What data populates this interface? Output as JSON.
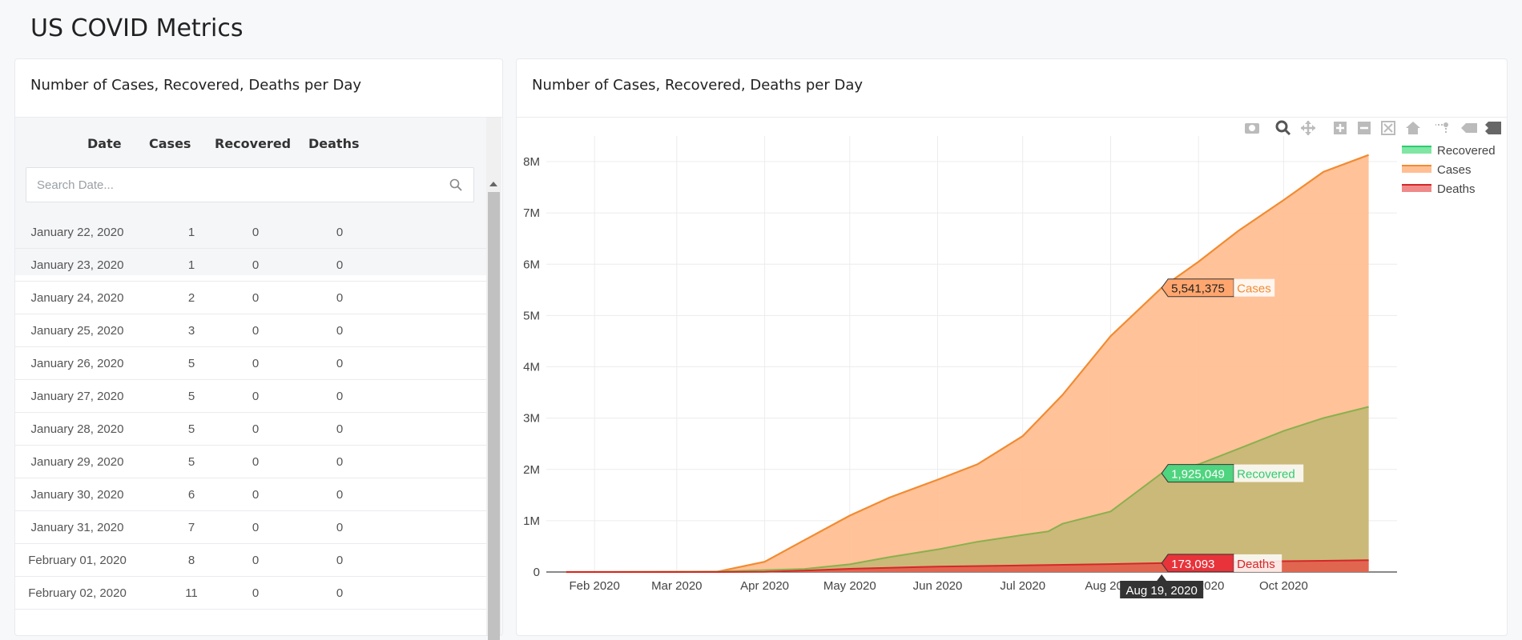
{
  "page_title": "US COVID Metrics",
  "table_card": {
    "title": "Number of Cases, Recovered, Deaths per Day",
    "columns": [
      "Date",
      "Cases",
      "Recovered",
      "Deaths"
    ],
    "search_placeholder": "Search Date...",
    "rows": [
      {
        "date": "January 22, 2020",
        "cases": "1",
        "recovered": "0",
        "deaths": "0"
      },
      {
        "date": "January 23, 2020",
        "cases": "1",
        "recovered": "0",
        "deaths": "0"
      },
      {
        "date": "January 24, 2020",
        "cases": "2",
        "recovered": "0",
        "deaths": "0"
      },
      {
        "date": "January 25, 2020",
        "cases": "3",
        "recovered": "0",
        "deaths": "0"
      },
      {
        "date": "January 26, 2020",
        "cases": "5",
        "recovered": "0",
        "deaths": "0"
      },
      {
        "date": "January 27, 2020",
        "cases": "5",
        "recovered": "0",
        "deaths": "0"
      },
      {
        "date": "January 28, 2020",
        "cases": "5",
        "recovered": "0",
        "deaths": "0"
      },
      {
        "date": "January 29, 2020",
        "cases": "5",
        "recovered": "0",
        "deaths": "0"
      },
      {
        "date": "January 30, 2020",
        "cases": "6",
        "recovered": "0",
        "deaths": "0"
      },
      {
        "date": "January 31, 2020",
        "cases": "7",
        "recovered": "0",
        "deaths": "0"
      },
      {
        "date": "February 01, 2020",
        "cases": "8",
        "recovered": "0",
        "deaths": "0"
      },
      {
        "date": "February 02, 2020",
        "cases": "11",
        "recovered": "0",
        "deaths": "0"
      }
    ]
  },
  "chart_card": {
    "title": "Number of Cases, Recovered, Deaths per Day",
    "modebar_icons": [
      "camera-icon",
      "zoom-icon",
      "pan-icon",
      "zoom-in-icon",
      "zoom-out-icon",
      "autoscale-icon",
      "home-icon",
      "spike-lines-icon",
      "hover-closest-icon",
      "hover-compare-icon"
    ]
  },
  "chart_data": {
    "type": "area",
    "title": "",
    "xlabel": "",
    "ylabel": "",
    "x_ticks": [
      "Feb 2020",
      "Mar 2020",
      "Apr 2020",
      "May 2020",
      "Jun 2020",
      "Jul 2020",
      "Aug 2020",
      "Sep 2020",
      "Oct 2020"
    ],
    "y_ticks": [
      "0",
      "1M",
      "2M",
      "3M",
      "4M",
      "5M",
      "6M",
      "7M",
      "8M"
    ],
    "ylim": [
      0,
      8500000
    ],
    "xlim": [
      "2020-01-15",
      "2020-11-10"
    ],
    "grid": true,
    "legend_position": "top-right",
    "series": [
      {
        "name": "Recovered",
        "color": "#2ecc71",
        "x": [
          "2020-01-22",
          "2020-03-15",
          "2020-04-15",
          "2020-05-01",
          "2020-05-15",
          "2020-06-01",
          "2020-06-15",
          "2020-07-01",
          "2020-07-10",
          "2020-07-15",
          "2020-08-01",
          "2020-08-19",
          "2020-09-01",
          "2020-09-15",
          "2020-10-01",
          "2020-10-15",
          "2020-10-31"
        ],
        "values": [
          0,
          10000,
          60000,
          150000,
          290000,
          440000,
          590000,
          720000,
          790000,
          940000,
          1180000,
          1925049,
          2100000,
          2400000,
          2750000,
          3000000,
          3220000
        ]
      },
      {
        "name": "Cases",
        "color": "#f28b30",
        "x": [
          "2020-01-22",
          "2020-03-01",
          "2020-03-15",
          "2020-04-01",
          "2020-04-15",
          "2020-05-01",
          "2020-05-15",
          "2020-06-01",
          "2020-06-15",
          "2020-07-01",
          "2020-07-15",
          "2020-08-01",
          "2020-08-19",
          "2020-09-01",
          "2020-09-15",
          "2020-10-01",
          "2020-10-15",
          "2020-10-31"
        ],
        "values": [
          1,
          80,
          3500,
          200000,
          620000,
          1100000,
          1450000,
          1800000,
          2100000,
          2650000,
          3450000,
          4600000,
          5541375,
          6050000,
          6650000,
          7250000,
          7800000,
          8130000
        ]
      },
      {
        "name": "Deaths",
        "color": "#d62728",
        "x": [
          "2020-01-22",
          "2020-03-15",
          "2020-04-01",
          "2020-04-15",
          "2020-05-01",
          "2020-06-01",
          "2020-07-01",
          "2020-08-01",
          "2020-08-19",
          "2020-09-01",
          "2020-10-01",
          "2020-10-31"
        ],
        "values": [
          0,
          60,
          5000,
          28000,
          63000,
          106000,
          128000,
          155000,
          173093,
          185000,
          210000,
          230000
        ]
      }
    ],
    "hover": {
      "x_label": "Aug 19, 2020",
      "labels": [
        {
          "series": "Cases",
          "value": "5,541,375"
        },
        {
          "series": "Recovered",
          "value": "1,925,049"
        },
        {
          "series": "Deaths",
          "value": "173,093"
        }
      ]
    }
  }
}
